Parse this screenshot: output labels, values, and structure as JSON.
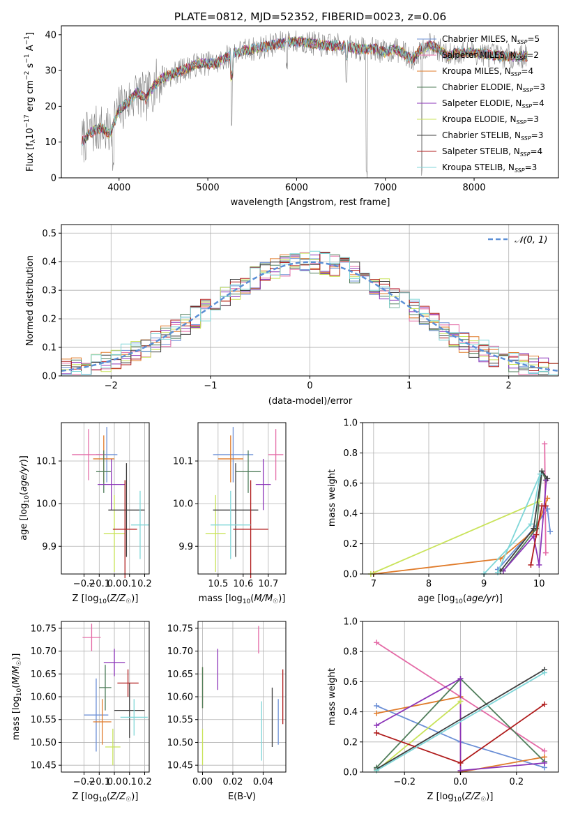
{
  "figure_title": "PLATE=0812, MJD=52352, FIBERID=0023, z=0.06",
  "colors": {
    "series": [
      "#6b8fd6",
      "#e46aa6",
      "#e07b2a",
      "#4f7d5a",
      "#8b34b8",
      "#c9e35a",
      "#3f3f3f",
      "#b01c1c",
      "#7fd6d8"
    ],
    "data": "#808080",
    "normal_curve": "#5b8fd6",
    "grid": "#b0b0b0"
  },
  "legend": [
    {
      "name": "Chabrier MILES",
      "nssp": "5"
    },
    {
      "name": "Salpeter MILES",
      "nssp": "2"
    },
    {
      "name": "Kroupa MILES",
      "nssp": "4"
    },
    {
      "name": "Chabrier ELODIE",
      "nssp": "3"
    },
    {
      "name": "Salpeter ELODIE",
      "nssp": "4"
    },
    {
      "name": "Kroupa ELODIE",
      "nssp": "3"
    },
    {
      "name": "Chabrier STELIB",
      "nssp": "3"
    },
    {
      "name": "Salpeter STELIB",
      "nssp": "4"
    },
    {
      "name": "Kroupa STELIB",
      "nssp": "3"
    }
  ],
  "chart_data": [
    {
      "id": "spectrum",
      "type": "line",
      "xlabel": "wavelength [Angstrom, rest frame]",
      "ylabel": "Flux [f_λ 10^-17 erg cm^-2 s^-1 A^-1]",
      "xlim": [
        3350,
        8950
      ],
      "ylim": [
        0,
        42.5
      ],
      "xticks": [
        4000,
        5000,
        6000,
        7000,
        8000
      ],
      "yticks": [
        0,
        10,
        20,
        30,
        40
      ],
      "grid": false,
      "legend_position": "top-right",
      "continuum": {
        "x": [
          3580,
          3650,
          3700,
          3800,
          3900,
          3950,
          4000,
          4100,
          4200,
          4300,
          4400,
          4500,
          4700,
          4900,
          5100,
          5300,
          5500,
          5700,
          5900,
          6100,
          6300,
          6500,
          6700,
          6900,
          7000,
          7100,
          7200,
          7300,
          7400,
          7500,
          7600,
          7700,
          7800,
          8000,
          8300,
          8600
        ],
        "y": [
          10,
          12,
          13,
          14,
          12,
          16,
          19,
          21,
          24,
          22,
          26,
          28,
          30,
          32,
          32,
          35,
          36,
          37,
          38,
          38,
          37,
          37,
          36,
          36,
          35,
          36,
          35,
          33,
          36,
          37,
          36,
          34,
          35,
          35,
          34,
          34
        ]
      },
      "dips": [
        {
          "x": 3934,
          "y": 2
        },
        {
          "x": 5270,
          "y": 14
        },
        {
          "x": 5890,
          "y": 30
        },
        {
          "x": 6563,
          "y": 25
        },
        {
          "x": 6790,
          "y": 0
        },
        {
          "x": 7410,
          "y": 0
        }
      ],
      "annotations": []
    },
    {
      "id": "residuals",
      "type": "histogram",
      "xlabel": "(data-model)/error",
      "ylabel": "Normed distribution",
      "xlim": [
        -2.5,
        2.5
      ],
      "ylim": [
        0,
        0.53
      ],
      "xticks": [
        -2,
        -1,
        0,
        1,
        2
      ],
      "yticks": [
        0,
        0.1,
        0.2,
        0.3,
        0.4,
        0.5
      ],
      "grid": true,
      "bin_width": 0.1,
      "legend": [
        {
          "label": "N(0,1)",
          "style": "dashed"
        }
      ],
      "legend_position": "top-right"
    },
    {
      "id": "age_vs_Z",
      "type": "scatter",
      "xlabel": "Z [log10(Z/Z☉)]",
      "ylabel": "age [log10(age/yr)]",
      "xlim": [
        -0.35,
        0.23
      ],
      "ylim": [
        9.835,
        10.19
      ],
      "xticks": [
        -0.2,
        -0.1,
        0.0,
        0.1,
        0.2
      ],
      "yticks": [
        9.9,
        10.0,
        10.1
      ],
      "grid": true,
      "points": [
        {
          "x": -0.05,
          "y": 10.115,
          "xerr": 0.07,
          "yerr": 0.065
        },
        {
          "x": -0.17,
          "y": 10.115,
          "xerr": 0.11,
          "yerr": 0.06
        },
        {
          "x": -0.07,
          "y": 10.105,
          "xerr": 0.07,
          "yerr": 0.055
        },
        {
          "x": -0.07,
          "y": 10.075,
          "xerr": 0.05,
          "yerr": 0.05
        },
        {
          "x": -0.02,
          "y": 10.045,
          "xerr": 0.09,
          "yerr": 0.06
        },
        {
          "x": 0.0,
          "y": 9.93,
          "xerr": 0.07,
          "yerr": 0.09
        },
        {
          "x": 0.08,
          "y": 9.985,
          "xerr": 0.12,
          "yerr": 0.11
        },
        {
          "x": 0.07,
          "y": 9.94,
          "xerr": 0.08,
          "yerr": 0.115
        },
        {
          "x": 0.17,
          "y": 9.95,
          "xerr": 0.06,
          "yerr": 0.08
        }
      ]
    },
    {
      "id": "age_vs_mass",
      "type": "scatter",
      "xlabel": "mass [log10(M/M☉)]",
      "ylabel": "",
      "xlim": [
        10.42,
        10.77
      ],
      "ylim": [
        9.835,
        10.19
      ],
      "xticks": [
        10.5,
        10.6,
        10.7
      ],
      "yticks": [
        9.9,
        10.0,
        10.1
      ],
      "grid": true,
      "points": [
        {
          "x": 10.56,
          "y": 10.115,
          "xerr": 0.08,
          "yerr": 0.065
        },
        {
          "x": 10.73,
          "y": 10.115,
          "xerr": 0.03,
          "yerr": 0.06
        },
        {
          "x": 10.55,
          "y": 10.105,
          "xerr": 0.05,
          "yerr": 0.055
        },
        {
          "x": 10.62,
          "y": 10.075,
          "xerr": 0.05,
          "yerr": 0.05
        },
        {
          "x": 10.68,
          "y": 10.045,
          "xerr": 0.03,
          "yerr": 0.06
        },
        {
          "x": 10.49,
          "y": 9.93,
          "xerr": 0.04,
          "yerr": 0.09
        },
        {
          "x": 10.57,
          "y": 9.985,
          "xerr": 0.09,
          "yerr": 0.11
        },
        {
          "x": 10.63,
          "y": 9.94,
          "xerr": 0.07,
          "yerr": 0.115
        },
        {
          "x": 10.55,
          "y": 9.95,
          "xerr": 0.08,
          "yerr": 0.08
        }
      ]
    },
    {
      "id": "massweight_vs_age",
      "type": "line",
      "xlabel": "age [log10(age/yr)]",
      "ylabel": "mass weight",
      "xlim": [
        6.8,
        10.35
      ],
      "ylim": [
        0,
        1.0
      ],
      "xticks": [
        7,
        8,
        9,
        10
      ],
      "yticks": [
        0,
        0.2,
        0.4,
        0.6,
        0.8,
        1.0
      ],
      "grid": true,
      "series": [
        {
          "points": [
            [
              9.25,
              0.03
            ],
            [
              9.9,
              0.3
            ],
            [
              10.15,
              0.43
            ],
            [
              10.2,
              0.28
            ]
          ]
        },
        {
          "points": [
            [
              10.1,
              0.86
            ],
            [
              10.12,
              0.14
            ]
          ]
        },
        {
          "points": [
            [
              7.0,
              0.0
            ],
            [
              9.3,
              0.1
            ],
            [
              9.95,
              0.3
            ],
            [
              10.15,
              0.5
            ]
          ]
        },
        {
          "points": [
            [
              9.35,
              0.02
            ],
            [
              9.95,
              0.3
            ],
            [
              10.05,
              0.68
            ],
            [
              10.12,
              0.62
            ]
          ]
        },
        {
          "points": [
            [
              9.35,
              0.02
            ],
            [
              9.9,
              0.25
            ],
            [
              10.0,
              0.06
            ],
            [
              10.13,
              0.62
            ]
          ]
        },
        {
          "points": [
            [
              6.95,
              0.0
            ],
            [
              10.0,
              0.48
            ]
          ]
        },
        {
          "points": [
            [
              9.3,
              0.02
            ],
            [
              9.9,
              0.3
            ],
            [
              10.05,
              0.68
            ],
            [
              10.15,
              0.63
            ]
          ]
        },
        {
          "points": [
            [
              9.85,
              0.06
            ],
            [
              9.95,
              0.26
            ],
            [
              10.05,
              0.45
            ],
            [
              10.12,
              0.45
            ]
          ]
        },
        {
          "points": [
            [
              9.25,
              0.01
            ],
            [
              10.02,
              0.66
            ],
            [
              9.85,
              0.33
            ],
            [
              9.0,
              0.0
            ]
          ]
        }
      ]
    },
    {
      "id": "mass_vs_Z",
      "type": "scatter",
      "xlabel": "Z [log10(Z/Z☉)]",
      "ylabel": "mass [log10(M/M☉)]",
      "xlim": [
        -0.35,
        0.23
      ],
      "ylim": [
        10.435,
        10.765
      ],
      "xticks": [
        -0.2,
        -0.1,
        0.0,
        0.1,
        0.2
      ],
      "yticks": [
        10.45,
        10.5,
        10.55,
        10.6,
        10.65,
        10.7,
        10.75
      ],
      "grid": true,
      "points": [
        {
          "x": -0.12,
          "y": 10.56,
          "xerr": 0.08,
          "yerr": 0.08
        },
        {
          "x": -0.15,
          "y": 10.73,
          "xerr": 0.06,
          "yerr": 0.03
        },
        {
          "x": -0.08,
          "y": 10.545,
          "xerr": 0.06,
          "yerr": 0.05
        },
        {
          "x": -0.06,
          "y": 10.62,
          "xerr": 0.04,
          "yerr": 0.05
        },
        {
          "x": 0.0,
          "y": 10.675,
          "xerr": 0.07,
          "yerr": 0.03
        },
        {
          "x": -0.01,
          "y": 10.49,
          "xerr": 0.05,
          "yerr": 0.04
        },
        {
          "x": 0.1,
          "y": 10.57,
          "xerr": 0.1,
          "yerr": 0.06
        },
        {
          "x": 0.09,
          "y": 10.63,
          "xerr": 0.07,
          "yerr": 0.03
        },
        {
          "x": 0.13,
          "y": 10.555,
          "xerr": 0.09,
          "yerr": 0.04
        }
      ]
    },
    {
      "id": "mass_vs_ebv",
      "type": "scatter",
      "xlabel": "E(B-V)",
      "ylabel": "",
      "xlim": [
        -0.003,
        0.055
      ],
      "ylim": [
        10.435,
        10.765
      ],
      "xticks": [
        0.0,
        0.02,
        0.04
      ],
      "yticks": [
        10.45,
        10.5,
        10.55,
        10.6,
        10.65,
        10.7,
        10.75
      ],
      "grid": true,
      "points": [
        {
          "x": 0.05,
          "y": 10.545,
          "xerr": 0,
          "yerr": 0.05
        },
        {
          "x": 0.037,
          "y": 10.725,
          "xerr": 0,
          "yerr": 0.03
        },
        {
          "x": 0.0,
          "y": 10.62,
          "xerr": 0,
          "yerr": 0.045
        },
        {
          "x": 0.0,
          "y": 10.62,
          "xerr": 0,
          "yerr": 0.045
        },
        {
          "x": 0.01,
          "y": 10.66,
          "xerr": 0,
          "yerr": 0.045
        },
        {
          "x": 0.0,
          "y": 10.49,
          "xerr": 0,
          "yerr": 0.04
        },
        {
          "x": 0.046,
          "y": 10.555,
          "xerr": 0,
          "yerr": 0.065
        },
        {
          "x": 0.053,
          "y": 10.6,
          "xerr": 0,
          "yerr": 0.06
        },
        {
          "x": 0.039,
          "y": 10.525,
          "xerr": 0,
          "yerr": 0.065
        }
      ]
    },
    {
      "id": "massweight_vs_Z",
      "type": "line",
      "xlabel": "Z [log10(Z/Z☉)]",
      "ylabel": "mass weight",
      "xlim": [
        -0.35,
        0.35
      ],
      "ylim": [
        0,
        1.0
      ],
      "xticks": [
        -0.2,
        0.0,
        0.2
      ],
      "yticks": [
        0,
        0.2,
        0.4,
        0.6,
        0.8,
        1.0
      ],
      "grid": true,
      "series": [
        {
          "points": [
            [
              -0.3,
              0.44
            ],
            [
              0.0,
              0.2
            ],
            [
              0.3,
              0.03
            ]
          ]
        },
        {
          "points": [
            [
              -0.3,
              0.86
            ],
            [
              0.3,
              0.14
            ]
          ]
        },
        {
          "points": [
            [
              -0.3,
              0.39
            ],
            [
              0.0,
              0.5
            ],
            [
              0.0,
              0.0
            ],
            [
              0.3,
              0.1
            ]
          ]
        },
        {
          "points": [
            [
              -0.3,
              0.03
            ],
            [
              0.0,
              0.62
            ],
            [
              0.3,
              0.07
            ]
          ]
        },
        {
          "points": [
            [
              -0.3,
              0.31
            ],
            [
              0.0,
              0.62
            ],
            [
              0.0,
              0.01
            ],
            [
              0.3,
              0.06
            ]
          ]
        },
        {
          "points": [
            [
              -0.3,
              0.01
            ],
            [
              0.0,
              0.47
            ]
          ]
        },
        {
          "points": [
            [
              -0.3,
              0.02
            ],
            [
              0.3,
              0.68
            ]
          ]
        },
        {
          "points": [
            [
              -0.3,
              0.26
            ],
            [
              0.0,
              0.06
            ],
            [
              0.3,
              0.45
            ]
          ]
        },
        {
          "points": [
            [
              -0.3,
              0.01
            ],
            [
              0.3,
              0.66
            ]
          ]
        }
      ]
    }
  ]
}
